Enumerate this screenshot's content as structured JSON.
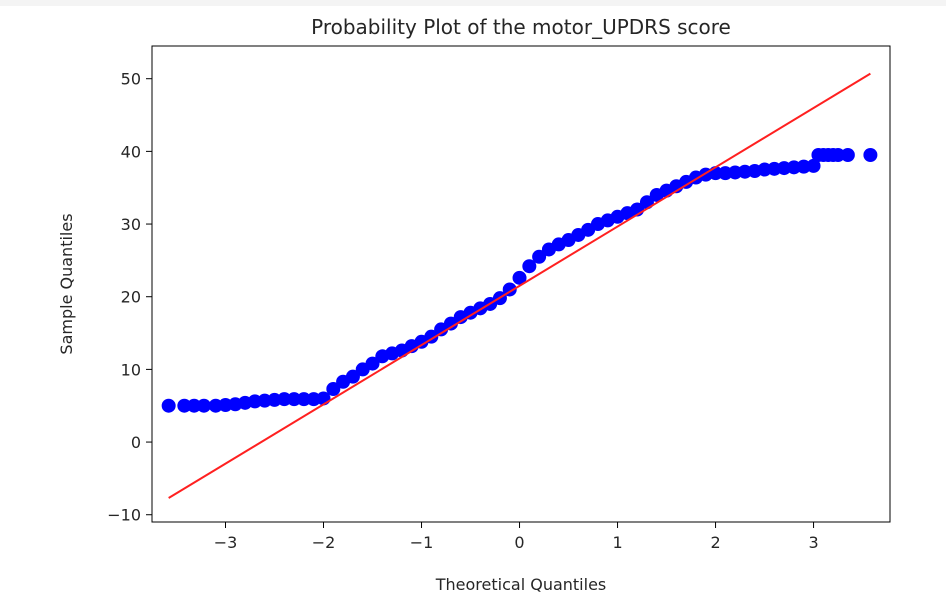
{
  "chart_data": {
    "type": "scatter",
    "title": "Probability Plot of the motor_UPDRS score",
    "xlabel": "Theoretical Quantiles",
    "ylabel": "Sample Quantiles",
    "xlim": [
      -3.75,
      3.78
    ],
    "ylim": [
      -11.0,
      54.5
    ],
    "xticks": [
      -3,
      -2,
      -1,
      0,
      1,
      2,
      3
    ],
    "xtick_labels": [
      "−3",
      "−2",
      "−1",
      "0",
      "1",
      "2",
      "3"
    ],
    "yticks": [
      -10,
      0,
      10,
      20,
      30,
      40,
      50
    ],
    "ytick_labels": [
      "−10",
      "0",
      "10",
      "20",
      "30",
      "40",
      "50"
    ],
    "grid": false,
    "legend": "none",
    "series": [
      {
        "kind": "points",
        "color": "#0000ff",
        "x": [
          -3.58,
          -3.42,
          -3.32,
          -3.22,
          -3.1,
          -3.0,
          -2.9,
          -2.8,
          -2.7,
          -2.6,
          -2.5,
          -2.4,
          -2.3,
          -2.2,
          -2.1,
          -2.0,
          -1.9,
          -1.8,
          -1.7,
          -1.6,
          -1.5,
          -1.4,
          -1.3,
          -1.2,
          -1.1,
          -1.0,
          -0.9,
          -0.8,
          -0.7,
          -0.6,
          -0.5,
          -0.4,
          -0.3,
          -0.2,
          -0.1,
          0.0,
          0.1,
          0.2,
          0.3,
          0.4,
          0.5,
          0.6,
          0.7,
          0.8,
          0.9,
          1.0,
          1.1,
          1.2,
          1.3,
          1.4,
          1.5,
          1.6,
          1.7,
          1.8,
          1.9,
          2.0,
          2.1,
          2.2,
          2.3,
          2.4,
          2.5,
          2.6,
          2.7,
          2.8,
          2.9,
          3.0,
          3.05,
          3.1,
          3.15,
          3.2,
          3.25,
          3.35,
          3.58
        ],
        "y": [
          5.0,
          5.0,
          5.0,
          5.0,
          5.0,
          5.1,
          5.2,
          5.4,
          5.6,
          5.7,
          5.8,
          5.9,
          5.9,
          5.9,
          5.9,
          6.0,
          7.3,
          8.3,
          9.0,
          10.0,
          10.8,
          11.8,
          12.2,
          12.6,
          13.2,
          13.8,
          14.5,
          15.5,
          16.3,
          17.2,
          17.8,
          18.4,
          19.0,
          19.8,
          21.0,
          22.6,
          24.2,
          25.5,
          26.5,
          27.2,
          27.8,
          28.5,
          29.2,
          30.0,
          30.5,
          31.0,
          31.5,
          32.0,
          33.0,
          34.0,
          34.6,
          35.2,
          35.8,
          36.4,
          36.8,
          37.0,
          37.0,
          37.1,
          37.2,
          37.3,
          37.5,
          37.6,
          37.7,
          37.8,
          37.9,
          38.0,
          39.5,
          39.5,
          39.5,
          39.5,
          39.5,
          39.5,
          39.5
        ]
      },
      {
        "kind": "line",
        "color": "#ff2020",
        "x": [
          -3.58,
          3.58
        ],
        "y": [
          -7.7,
          50.7
        ]
      }
    ]
  }
}
